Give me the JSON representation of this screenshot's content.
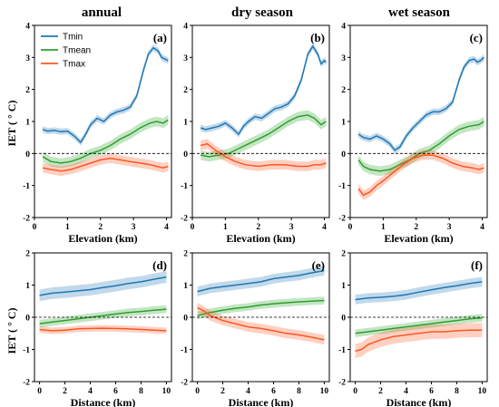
{
  "colors": {
    "Tmin": "#1f77b4",
    "Tmean": "#2ca02c",
    "Tmax": "#ff5722"
  },
  "column_titles": [
    "annual",
    "dry season",
    "wet season"
  ],
  "row_ylabel": "IET ( ° C)",
  "chart_data": [
    {
      "type": "line",
      "panel": "(a)",
      "column": "annual",
      "xlabel": "Elevation (km)",
      "xlim": [
        0,
        4.15
      ],
      "ylim": [
        -2,
        4
      ],
      "xticks": [
        0,
        1,
        2,
        3,
        4
      ],
      "yticks": [
        -2,
        -1,
        0,
        1,
        2,
        3,
        4
      ],
      "legend": {
        "placement": "top-left",
        "entries": [
          "Tmin",
          "Tmean",
          "Tmax"
        ]
      },
      "series": [
        {
          "name": "Tmin",
          "band": 0.1,
          "x": [
            0.25,
            0.4,
            0.6,
            0.8,
            1.0,
            1.2,
            1.4,
            1.55,
            1.7,
            1.9,
            2.1,
            2.3,
            2.5,
            2.7,
            2.9,
            3.1,
            3.3,
            3.45,
            3.6,
            3.75,
            3.85,
            3.95,
            4.05
          ],
          "y": [
            0.75,
            0.7,
            0.72,
            0.68,
            0.7,
            0.55,
            0.35,
            0.6,
            0.9,
            1.1,
            1.0,
            1.2,
            1.3,
            1.35,
            1.45,
            1.8,
            2.6,
            3.1,
            3.3,
            3.2,
            3.0,
            2.95,
            2.9
          ]
        },
        {
          "name": "Tmean",
          "band": 0.15,
          "x": [
            0.25,
            0.5,
            0.8,
            1.1,
            1.4,
            1.7,
            2.0,
            2.3,
            2.6,
            2.9,
            3.2,
            3.5,
            3.7,
            3.9,
            4.05
          ],
          "y": [
            -0.1,
            -0.25,
            -0.3,
            -0.25,
            -0.15,
            0.0,
            0.1,
            0.25,
            0.45,
            0.6,
            0.8,
            0.95,
            1.0,
            0.95,
            1.05
          ]
        },
        {
          "name": "Tmax",
          "band": 0.15,
          "x": [
            0.25,
            0.5,
            0.8,
            1.1,
            1.4,
            1.7,
            2.0,
            2.3,
            2.6,
            2.9,
            3.2,
            3.5,
            3.7,
            3.9,
            4.05
          ],
          "y": [
            -0.45,
            -0.5,
            -0.55,
            -0.5,
            -0.4,
            -0.3,
            -0.2,
            -0.15,
            -0.2,
            -0.25,
            -0.3,
            -0.35,
            -0.4,
            -0.45,
            -0.4
          ]
        }
      ]
    },
    {
      "type": "line",
      "panel": "(b)",
      "column": "dry season",
      "xlabel": "Elevation (km)",
      "xlim": [
        0,
        4.15
      ],
      "ylim": [
        -2,
        4
      ],
      "xticks": [
        0,
        1,
        2,
        3,
        4
      ],
      "yticks": [
        -2,
        -1,
        0,
        1,
        2,
        3,
        4
      ],
      "series": [
        {
          "name": "Tmin",
          "band": 0.1,
          "x": [
            0.25,
            0.4,
            0.6,
            0.8,
            1.0,
            1.2,
            1.4,
            1.55,
            1.7,
            1.9,
            2.1,
            2.3,
            2.5,
            2.7,
            2.9,
            3.1,
            3.3,
            3.5,
            3.65,
            3.8,
            3.9,
            4.0,
            4.05
          ],
          "y": [
            0.8,
            0.75,
            0.8,
            0.85,
            0.95,
            0.8,
            0.6,
            0.85,
            1.0,
            1.15,
            1.1,
            1.25,
            1.4,
            1.45,
            1.55,
            1.8,
            2.3,
            3.1,
            3.35,
            3.1,
            2.8,
            2.9,
            2.85
          ]
        },
        {
          "name": "Tmean",
          "band": 0.15,
          "x": [
            0.25,
            0.5,
            0.8,
            1.1,
            1.4,
            1.7,
            2.0,
            2.3,
            2.6,
            2.9,
            3.2,
            3.5,
            3.7,
            3.9,
            4.05
          ],
          "y": [
            -0.05,
            -0.1,
            -0.05,
            0.0,
            0.15,
            0.3,
            0.45,
            0.6,
            0.8,
            1.0,
            1.15,
            1.2,
            1.1,
            0.9,
            1.0
          ]
        },
        {
          "name": "Tmax",
          "band": 0.15,
          "x": [
            0.25,
            0.45,
            0.7,
            1.0,
            1.3,
            1.6,
            2.0,
            2.4,
            2.8,
            3.2,
            3.5,
            3.7,
            3.9,
            4.05
          ],
          "y": [
            0.25,
            0.3,
            0.1,
            -0.1,
            -0.25,
            -0.35,
            -0.4,
            -0.35,
            -0.35,
            -0.4,
            -0.4,
            -0.35,
            -0.35,
            -0.3
          ]
        }
      ]
    },
    {
      "type": "line",
      "panel": "(c)",
      "column": "wet season",
      "xlabel": "Elevation (km)",
      "xlim": [
        0,
        4.15
      ],
      "ylim": [
        -2,
        4
      ],
      "xticks": [
        0,
        1,
        2,
        3,
        4
      ],
      "yticks": [
        -2,
        -1,
        0,
        1,
        2,
        3,
        4
      ],
      "series": [
        {
          "name": "Tmin",
          "band": 0.1,
          "x": [
            0.25,
            0.4,
            0.6,
            0.8,
            1.0,
            1.2,
            1.35,
            1.5,
            1.7,
            1.9,
            2.1,
            2.3,
            2.5,
            2.7,
            2.9,
            3.1,
            3.3,
            3.45,
            3.6,
            3.75,
            3.85,
            3.95,
            4.05
          ],
          "y": [
            0.6,
            0.5,
            0.45,
            0.55,
            0.45,
            0.3,
            0.1,
            0.2,
            0.55,
            0.8,
            1.0,
            1.2,
            1.3,
            1.3,
            1.4,
            1.6,
            2.3,
            2.7,
            2.9,
            2.95,
            2.85,
            2.9,
            3.0
          ]
        },
        {
          "name": "Tmean",
          "band": 0.15,
          "x": [
            0.25,
            0.4,
            0.6,
            0.9,
            1.2,
            1.5,
            1.8,
            2.1,
            2.4,
            2.7,
            3.0,
            3.3,
            3.6,
            3.9,
            4.05
          ],
          "y": [
            -0.2,
            -0.4,
            -0.5,
            -0.55,
            -0.5,
            -0.35,
            -0.2,
            0.0,
            0.1,
            0.3,
            0.55,
            0.75,
            0.85,
            0.9,
            1.0
          ]
        },
        {
          "name": "Tmax",
          "band": 0.15,
          "x": [
            0.25,
            0.4,
            0.6,
            0.8,
            1.0,
            1.3,
            1.6,
            1.9,
            2.2,
            2.5,
            2.8,
            3.1,
            3.4,
            3.7,
            3.9,
            4.05
          ],
          "y": [
            -1.1,
            -1.3,
            -1.2,
            -1.0,
            -0.85,
            -0.6,
            -0.35,
            -0.15,
            -0.05,
            -0.05,
            -0.15,
            -0.3,
            -0.4,
            -0.45,
            -0.5,
            -0.45
          ]
        }
      ]
    },
    {
      "type": "line",
      "panel": "(d)",
      "column": "annual",
      "xlabel": "Distance (km)",
      "xlim": [
        -0.4,
        10.4
      ],
      "ylim": [
        -2,
        2
      ],
      "xticks": [
        0,
        2,
        4,
        6,
        8,
        10
      ],
      "yticks": [
        -2,
        -1,
        0,
        1,
        2
      ],
      "series": [
        {
          "name": "Tmin",
          "band": 0.18,
          "x": [
            0,
            1,
            2,
            3,
            4,
            5,
            6,
            7,
            8,
            9,
            10
          ],
          "y": [
            0.68,
            0.75,
            0.78,
            0.82,
            0.86,
            0.92,
            0.98,
            1.05,
            1.1,
            1.18,
            1.25
          ]
        },
        {
          "name": "Tmean",
          "band": 0.12,
          "x": [
            0,
            1,
            2,
            3,
            4,
            5,
            6,
            7,
            8,
            9,
            10
          ],
          "y": [
            -0.2,
            -0.15,
            -0.1,
            -0.05,
            0.0,
            0.05,
            0.1,
            0.15,
            0.18,
            0.22,
            0.25
          ]
        },
        {
          "name": "Tmax",
          "band": 0.1,
          "x": [
            0,
            1,
            2,
            3,
            4,
            5,
            6,
            7,
            8,
            9,
            10
          ],
          "y": [
            -0.38,
            -0.42,
            -0.4,
            -0.36,
            -0.35,
            -0.34,
            -0.35,
            -0.36,
            -0.38,
            -0.4,
            -0.42
          ]
        }
      ]
    },
    {
      "type": "line",
      "panel": "(e)",
      "column": "dry season",
      "xlabel": "Distance (km)",
      "xlim": [
        -0.4,
        10.4
      ],
      "ylim": [
        -2,
        2
      ],
      "xticks": [
        0,
        2,
        4,
        6,
        8,
        10
      ],
      "yticks": [
        -2,
        -1,
        0,
        1,
        2
      ],
      "series": [
        {
          "name": "Tmin",
          "band": 0.15,
          "x": [
            0,
            1,
            2,
            3,
            4,
            5,
            6,
            7,
            8,
            9,
            10
          ],
          "y": [
            0.8,
            0.9,
            0.95,
            1.0,
            1.05,
            1.1,
            1.2,
            1.25,
            1.3,
            1.38,
            1.45
          ]
        },
        {
          "name": "Tmean",
          "band": 0.12,
          "x": [
            0,
            1,
            2,
            3,
            4,
            5,
            6,
            7,
            8,
            9,
            10
          ],
          "y": [
            0.05,
            0.15,
            0.22,
            0.28,
            0.32,
            0.38,
            0.42,
            0.45,
            0.48,
            0.5,
            0.52
          ]
        },
        {
          "name": "Tmax",
          "band": 0.15,
          "x": [
            0,
            0.5,
            1,
            2,
            3,
            4,
            5,
            6,
            7,
            8,
            9,
            10
          ],
          "y": [
            0.3,
            0.2,
            0.05,
            -0.1,
            -0.2,
            -0.3,
            -0.35,
            -0.42,
            -0.5,
            -0.55,
            -0.62,
            -0.7
          ]
        }
      ]
    },
    {
      "type": "line",
      "panel": "(f)",
      "column": "wet season",
      "xlabel": "Distance (km)",
      "xlim": [
        -0.4,
        10.4
      ],
      "ylim": [
        -2,
        2
      ],
      "xticks": [
        0,
        2,
        4,
        6,
        8,
        10
      ],
      "yticks": [
        -2,
        -1,
        0,
        1,
        2
      ],
      "series": [
        {
          "name": "Tmin",
          "band": 0.15,
          "x": [
            0,
            1,
            2,
            3,
            4,
            5,
            6,
            7,
            8,
            9,
            10
          ],
          "y": [
            0.55,
            0.6,
            0.62,
            0.65,
            0.7,
            0.78,
            0.85,
            0.92,
            0.98,
            1.05,
            1.1
          ]
        },
        {
          "name": "Tmean",
          "band": 0.12,
          "x": [
            0,
            1,
            2,
            3,
            4,
            5,
            6,
            7,
            8,
            9,
            10
          ],
          "y": [
            -0.5,
            -0.45,
            -0.4,
            -0.35,
            -0.3,
            -0.25,
            -0.2,
            -0.15,
            -0.1,
            -0.05,
            -0.02
          ]
        },
        {
          "name": "Tmax",
          "band": 0.22,
          "x": [
            0,
            0.5,
            1,
            2,
            3,
            4,
            5,
            6,
            7,
            8,
            9,
            10
          ],
          "y": [
            -1.05,
            -1.0,
            -0.85,
            -0.7,
            -0.6,
            -0.55,
            -0.5,
            -0.45,
            -0.45,
            -0.42,
            -0.4,
            -0.4
          ]
        }
      ]
    }
  ]
}
